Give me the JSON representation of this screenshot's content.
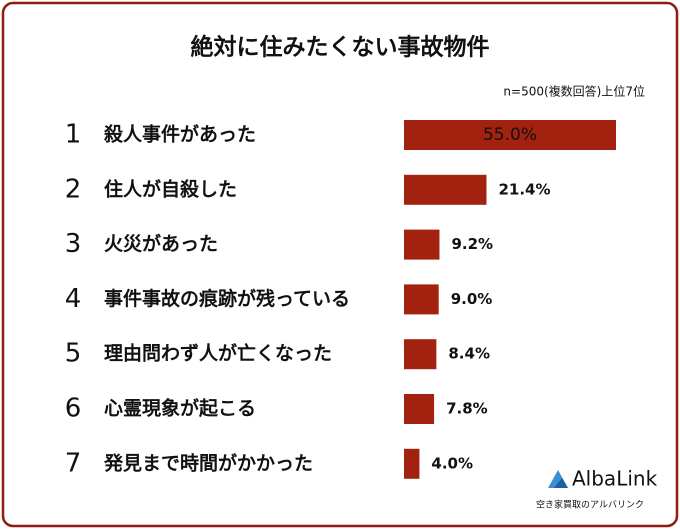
{
  "chart_data": {
    "type": "bar",
    "orientation": "horizontal",
    "title": "絶対に住みたくない事故物件",
    "subtitle": "n=500(複数回答)上位7位",
    "ranks": [
      1,
      2,
      3,
      4,
      5,
      6,
      7
    ],
    "categories": [
      "殺人事件があった",
      "住人が自殺した",
      "火災があった",
      "事件事故の痕跡が残っている",
      "理由問わず人が亡くなった",
      "心霊現象が起こる",
      "発見まで時間がかかった"
    ],
    "values": [
      55.0,
      21.4,
      9.2,
      9.0,
      8.4,
      7.8,
      4.0
    ],
    "value_labels": [
      "55.0%",
      "21.4%",
      "9.2%",
      "9.0%",
      "8.4%",
      "7.8%",
      "4.0%"
    ],
    "color": "#a3210f",
    "rank_color": "#a3210f",
    "brand": {
      "name": "AlbaLink",
      "tagline": "空き家買取のアルバリンク"
    }
  }
}
